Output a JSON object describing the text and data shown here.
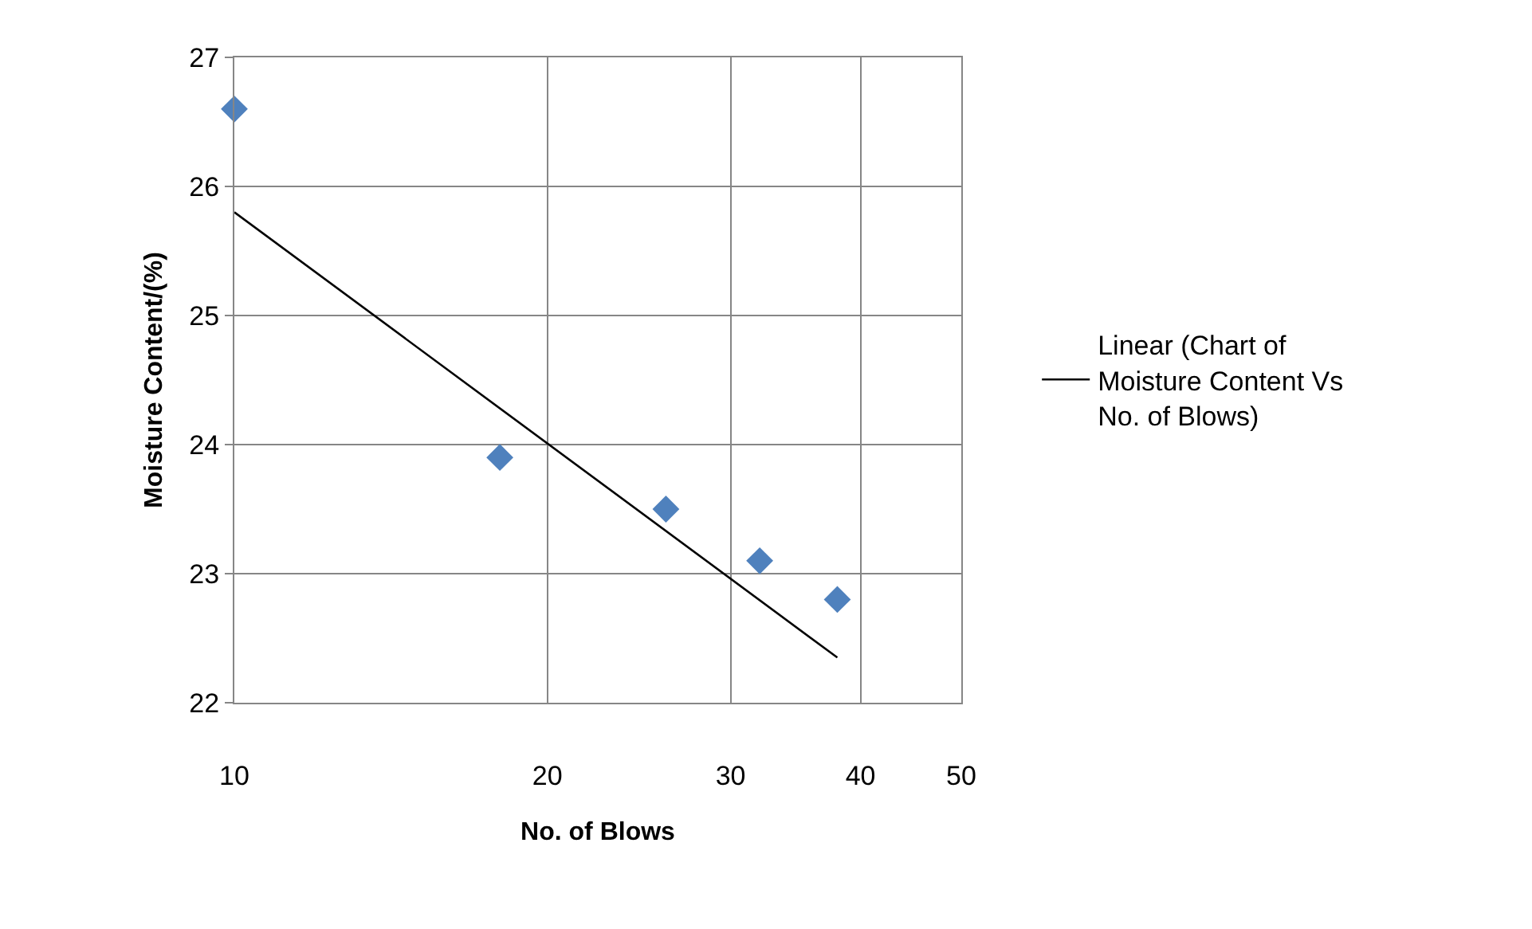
{
  "chart_data": {
    "type": "scatter",
    "xlabel": "No. of Blows",
    "ylabel": "Moisture Content/(%)",
    "log": "x",
    "xlim": [
      10,
      50
    ],
    "xticks": [
      10,
      20,
      30,
      40,
      50
    ],
    "ylim": [
      22,
      27
    ],
    "yticks": [
      22,
      23,
      24,
      25,
      26,
      27
    ],
    "grid": true,
    "legend": "right",
    "series": [
      {
        "marker": "diamond",
        "color": "#4f81bd",
        "x": [
          10,
          18,
          26,
          32,
          38
        ],
        "values": [
          26.6,
          23.9,
          23.5,
          23.1,
          22.8
        ]
      },
      {
        "type": "line",
        "name": "Linear (Chart of Moisture Content Vs No. of Blows)",
        "color": "#000000",
        "x": [
          10,
          38
        ],
        "values": [
          25.8,
          22.35
        ],
        "line_style": "solid",
        "marker": "none"
      }
    ]
  }
}
